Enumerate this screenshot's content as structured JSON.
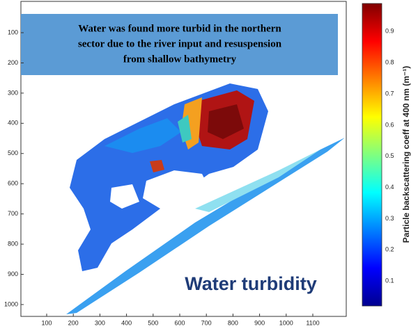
{
  "map": {
    "info_box": {
      "lines": [
        "Water was found more turbid in the northern",
        "sector due to the river input and resuspension",
        "from shallow bathymetry"
      ]
    },
    "overlay_title": "Water turbidity",
    "x_ticks": [
      100,
      200,
      300,
      400,
      500,
      600,
      700,
      800,
      900,
      1000,
      1100
    ],
    "y_ticks": [
      100,
      200,
      300,
      400,
      500,
      600,
      700,
      800,
      900,
      1000
    ],
    "colorbar": {
      "label": "Particle backscattering coeff at 400 nm (m⁻¹)",
      "range": [
        0.02,
        0.99
      ],
      "ticks": [
        0.1,
        0.2,
        0.3,
        0.4,
        0.5,
        0.6,
        0.7,
        0.8,
        0.9
      ]
    }
  }
}
